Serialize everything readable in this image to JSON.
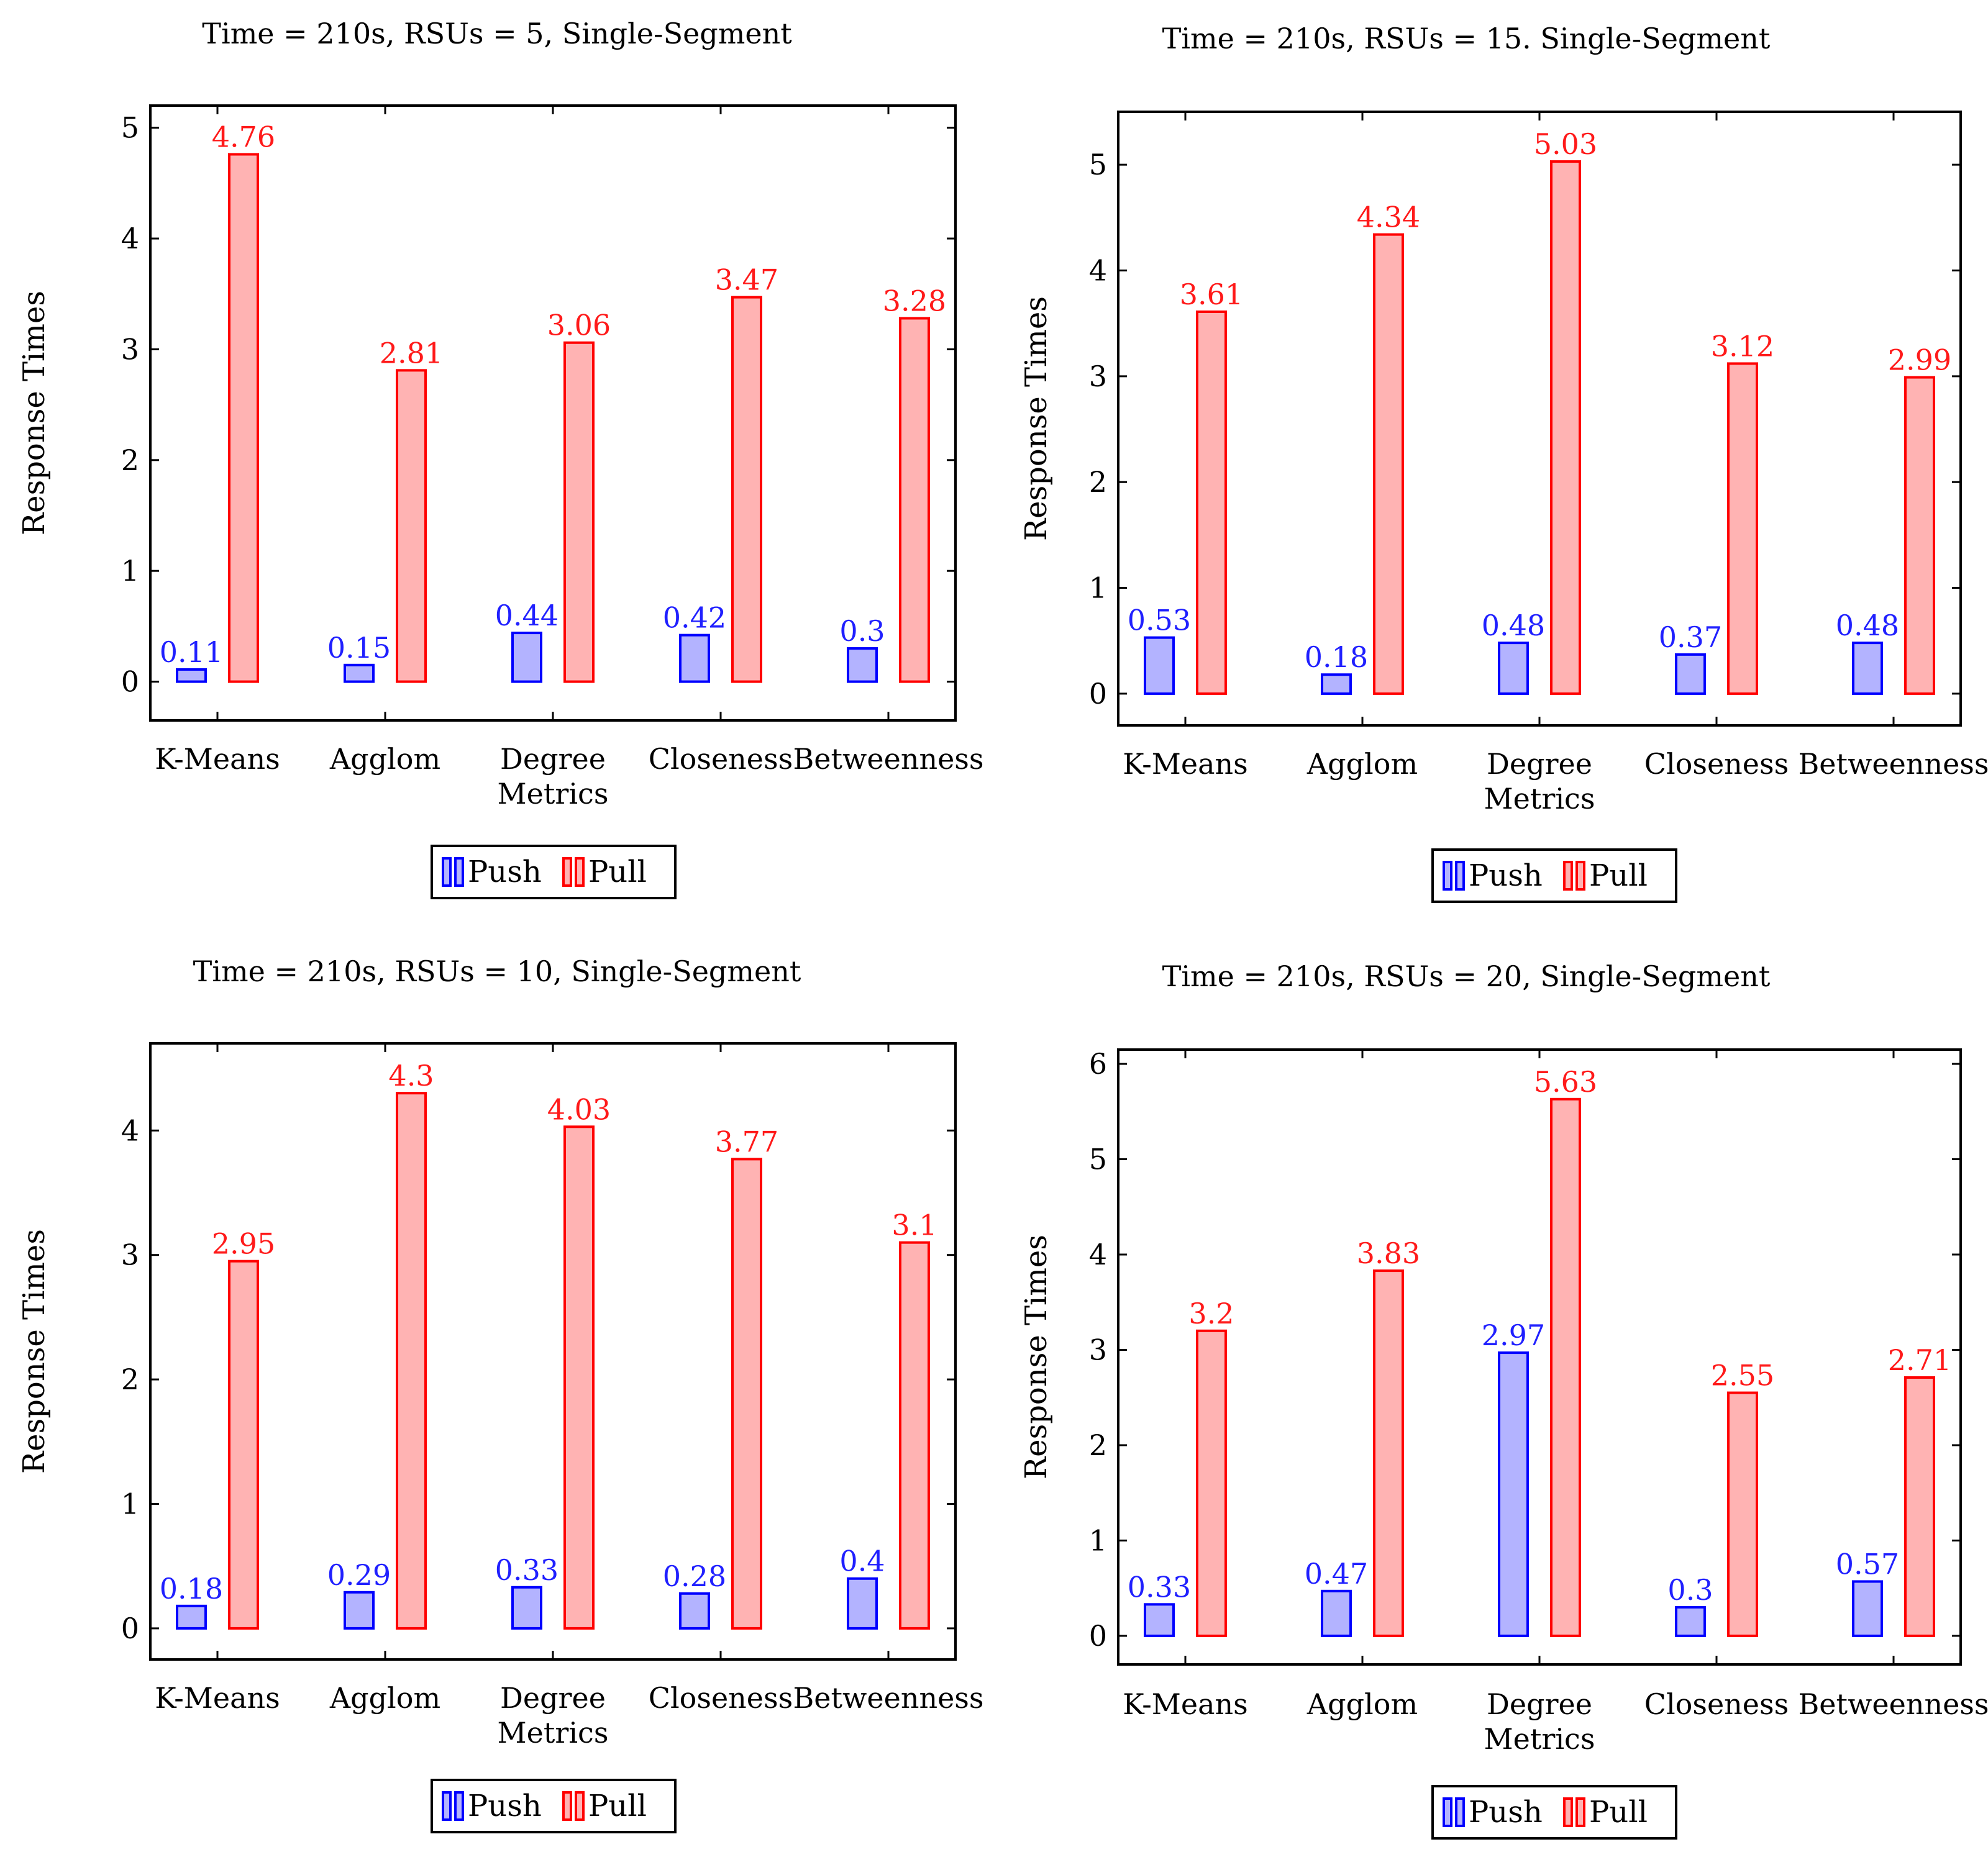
{
  "chart_data": [
    {
      "type": "bar",
      "title": "Time = 210s, RSUs = 5, Single-Segment",
      "ylabel": "Response Times",
      "xlabel": "",
      "categories": [
        [
          "K-Means"
        ],
        [
          "Agglom"
        ],
        [
          "Degree",
          "Metrics"
        ],
        [
          "Closeness"
        ],
        [
          "Betweenness"
        ]
      ],
      "ylim": [
        -0.35,
        5.2
      ],
      "yticks": [
        0,
        1,
        2,
        3,
        4,
        5
      ],
      "series": [
        {
          "name": "Push",
          "values": [
            0.11,
            0.15,
            0.44,
            0.42,
            0.3
          ]
        },
        {
          "name": "Pull",
          "values": [
            4.76,
            2.81,
            3.06,
            3.47,
            3.28
          ]
        }
      ],
      "legend": "bottom-center"
    },
    {
      "type": "bar",
      "title": "Time = 210s, RSUs = 15. Single-Segment",
      "ylabel": "Response Times",
      "xlabel": "",
      "categories": [
        [
          "K-Means"
        ],
        [
          "Agglom"
        ],
        [
          "Degree",
          "Metrics"
        ],
        [
          "Closeness"
        ],
        [
          "Betweenness"
        ]
      ],
      "ylim": [
        -0.3,
        5.5
      ],
      "yticks": [
        0,
        1,
        2,
        3,
        4,
        5
      ],
      "series": [
        {
          "name": "Push",
          "values": [
            0.53,
            0.18,
            0.48,
            0.37,
            0.48
          ]
        },
        {
          "name": "Pull",
          "values": [
            3.61,
            4.34,
            5.03,
            3.12,
            2.99
          ]
        }
      ],
      "legend": "bottom-center"
    },
    {
      "type": "bar",
      "title": "Time = 210s, RSUs = 10, Single-Segment",
      "ylabel": "Response Times",
      "xlabel": "",
      "categories": [
        [
          "K-Means"
        ],
        [
          "Agglom"
        ],
        [
          "Degree",
          "Metrics"
        ],
        [
          "Closeness"
        ],
        [
          "Betweenness"
        ]
      ],
      "ylim": [
        -0.25,
        4.7
      ],
      "yticks": [
        0,
        1,
        2,
        3,
        4
      ],
      "series": [
        {
          "name": "Push",
          "values": [
            0.18,
            0.29,
            0.33,
            0.28,
            0.4
          ]
        },
        {
          "name": "Pull",
          "values": [
            2.95,
            4.3,
            4.03,
            3.77,
            3.1
          ]
        }
      ],
      "legend": "bottom-center"
    },
    {
      "type": "bar",
      "title": "Time = 210s, RSUs = 20, Single-Segment",
      "ylabel": "Response Times",
      "xlabel": "",
      "categories": [
        [
          "K-Means"
        ],
        [
          "Agglom"
        ],
        [
          "Degree",
          "Metrics"
        ],
        [
          "Closeness"
        ],
        [
          "Betweenness"
        ]
      ],
      "ylim": [
        -0.3,
        6.15
      ],
      "yticks": [
        0,
        1,
        2,
        3,
        4,
        5,
        6
      ],
      "series": [
        {
          "name": "Push",
          "values": [
            0.33,
            0.47,
            2.97,
            0.3,
            0.57
          ]
        },
        {
          "name": "Pull",
          "values": [
            3.2,
            3.83,
            5.63,
            2.55,
            2.71
          ]
        }
      ],
      "legend": "bottom-center"
    }
  ]
}
